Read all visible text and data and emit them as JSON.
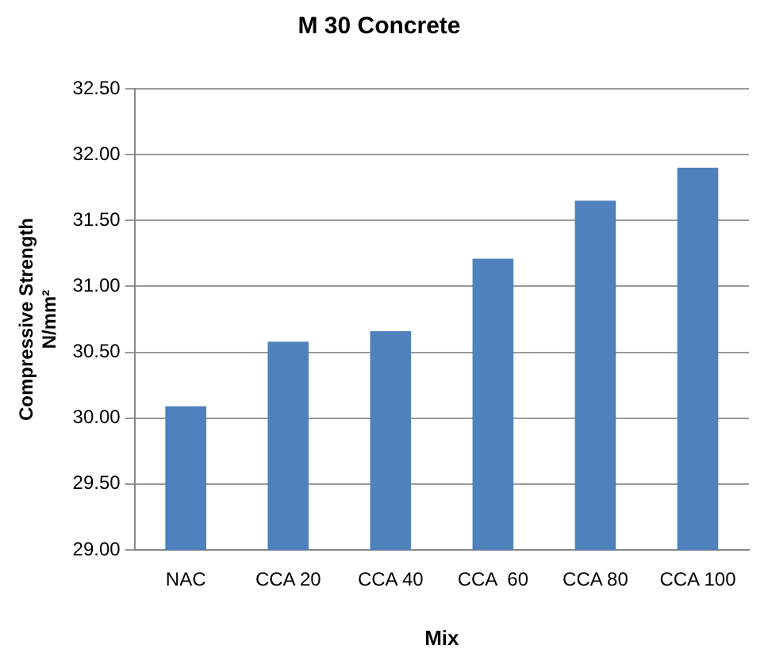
{
  "chart_data": {
    "type": "bar",
    "title": "M 30 Concrete",
    "xlabel": "Mix",
    "ylabel": "Compressive Strength\nN/mm²",
    "categories": [
      "NAC",
      "CCA 20",
      "CCA 40",
      "CCA  60",
      "CCA 80",
      "CCA 100"
    ],
    "values": [
      30.09,
      30.58,
      30.66,
      31.21,
      31.65,
      31.9
    ],
    "color": "#4f81bd",
    "ylim": [
      29,
      32.5
    ],
    "yticks": [
      {
        "value": 29,
        "label": "29.00"
      },
      {
        "value": 29.5,
        "label": "29.50"
      },
      {
        "value": 30,
        "label": "30.00"
      },
      {
        "value": 30.5,
        "label": "30.50"
      },
      {
        "value": 31,
        "label": "31.00"
      },
      {
        "value": 31.5,
        "label": "31.50"
      },
      {
        "value": 32,
        "label": "32.00"
      },
      {
        "value": 32.5,
        "label": "32.50"
      }
    ],
    "grid": "y",
    "legend": false
  }
}
